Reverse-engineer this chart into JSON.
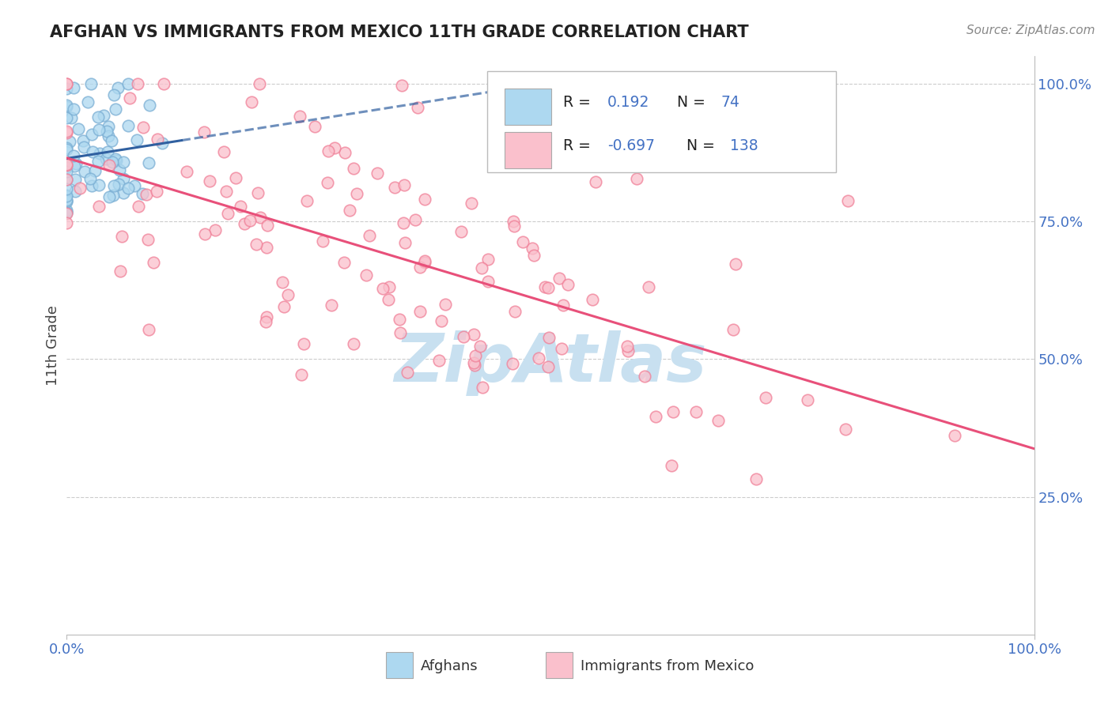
{
  "title": "AFGHAN VS IMMIGRANTS FROM MEXICO 11TH GRADE CORRELATION CHART",
  "source": "Source: ZipAtlas.com",
  "ylabel": "11th Grade",
  "blue_color": "#7BAFD4",
  "blue_face_color": "#ADD8F0",
  "pink_color": "#F08098",
  "pink_face_color": "#FAC0CC",
  "blue_line_color": "#3060A0",
  "pink_line_color": "#E8507A",
  "background_color": "#FFFFFF",
  "watermark": "ZipAtlas",
  "watermark_color": "#C8E0F0",
  "legend_color_num": "#4472C4",
  "grid_color": "#CCCCCC",
  "title_color": "#222222",
  "source_color": "#888888",
  "label_color": "#444444"
}
